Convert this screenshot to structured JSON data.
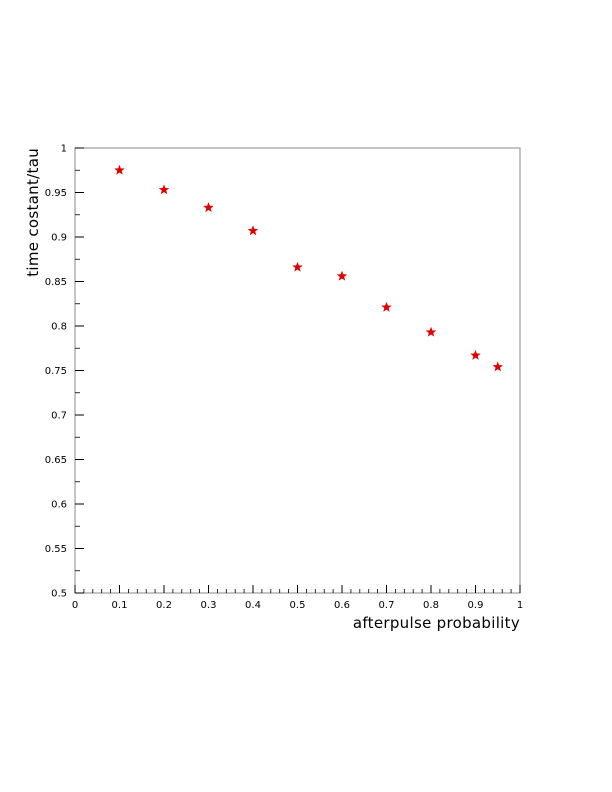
{
  "chart_data": {
    "type": "scatter",
    "title": "",
    "xlabel": "afterpulse probability",
    "ylabel": "time costant/tau",
    "xlim": [
      0,
      1
    ],
    "ylim": [
      0.5,
      1
    ],
    "x_ticks": [
      "0",
      "0.1",
      "0.2",
      "0.3",
      "0.4",
      "0.5",
      "0.6",
      "0.7",
      "0.8",
      "0.9",
      "1"
    ],
    "y_ticks": [
      "0.5",
      "0.55",
      "0.6",
      "0.65",
      "0.7",
      "0.75",
      "0.8",
      "0.85",
      "0.9",
      "0.95",
      "1"
    ],
    "grid": false,
    "marker": "star",
    "marker_color": "#e00000",
    "series": [
      {
        "x": [
          0.1,
          0.2,
          0.3,
          0.4,
          0.5,
          0.6,
          0.7,
          0.8,
          0.9,
          0.95
        ],
        "y": [
          0.975,
          0.953,
          0.933,
          0.907,
          0.866,
          0.856,
          0.821,
          0.793,
          0.767,
          0.754
        ]
      }
    ]
  }
}
